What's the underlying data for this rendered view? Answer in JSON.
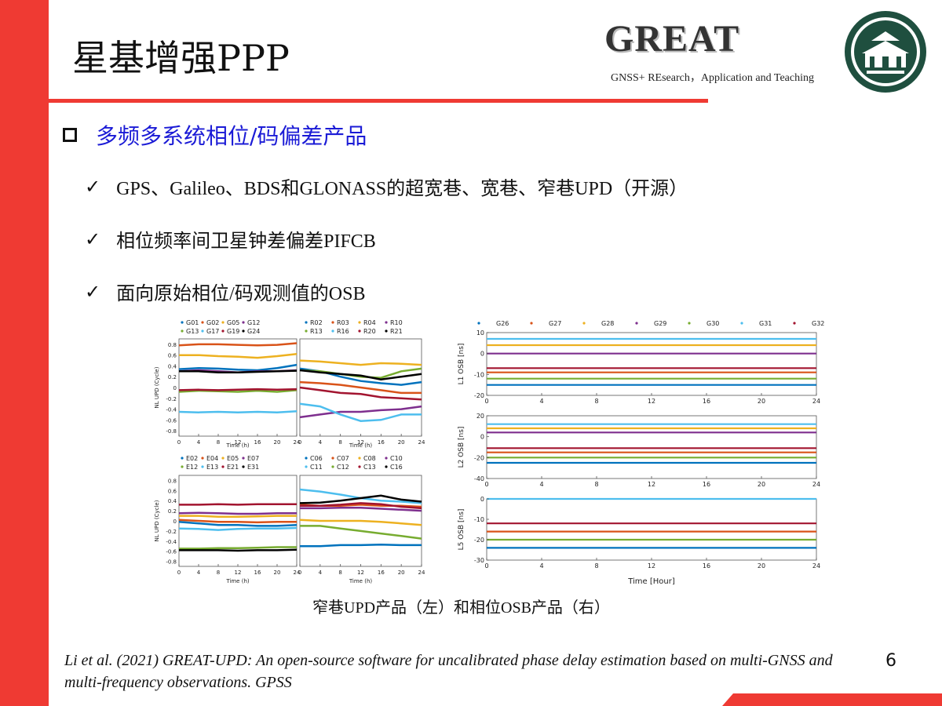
{
  "slide": {
    "title": "星基增强PPP",
    "page_number": "6",
    "brand": {
      "name": "GREAT",
      "tagline": "GNSS+ REsearch，Application and Teaching"
    },
    "seal_icon": "wuhan-university-seal",
    "colors": {
      "accent": "#ef3a33",
      "heading": "#1b1bd6"
    }
  },
  "content": {
    "main_bullet": "多频多系统相位/码偏差产品",
    "items": [
      "GPS、Galileo、BDS和GLONASS的超宽巷、宽巷、窄巷UPD（开源）",
      "相位频率间卫星钟差偏差PIFCB",
      "面向原始相位/码观测值的OSB"
    ],
    "caption": "窄巷UPD产品（左）和相位OSB产品（右）",
    "citation": "Li et al. (2021) GREAT-UPD: An open-source software for uncalibrated phase delay estimation based on multi-GNSS and multi-frequency observations. GPSS"
  },
  "chart_data": [
    {
      "type": "line",
      "ylabel": "NL UPD (Cycle)",
      "xlabel": "Time (h)",
      "y_ticks": [
        "0.8",
        "0.6",
        "0.4",
        "0.2",
        "0",
        "-0.2",
        "-0.4",
        "-0.6",
        "-0.8"
      ],
      "x_ticks": [
        "0",
        "4",
        "8",
        "12",
        "16",
        "20",
        "24"
      ],
      "legend": [
        "G01",
        "G02",
        "G05",
        "G12",
        "G13",
        "G17",
        "G19",
        "G24"
      ],
      "series": [
        {
          "name": "G01",
          "color": "#0072bd",
          "values": [
            0.34,
            0.36,
            0.35,
            0.33,
            0.32,
            0.36,
            0.42
          ]
        },
        {
          "name": "G02",
          "color": "#d95319",
          "values": [
            0.78,
            0.8,
            0.8,
            0.79,
            0.78,
            0.79,
            0.82
          ]
        },
        {
          "name": "G05",
          "color": "#edb120",
          "values": [
            0.6,
            0.6,
            0.58,
            0.57,
            0.55,
            0.58,
            0.62
          ]
        },
        {
          "name": "G12",
          "color": "#7e2f8e",
          "values": [
            0.3,
            0.32,
            0.3,
            0.28,
            0.3,
            0.3,
            0.32
          ]
        },
        {
          "name": "G13",
          "color": "#77ac30",
          "values": [
            -0.08,
            -0.06,
            -0.07,
            -0.08,
            -0.06,
            -0.08,
            -0.05
          ]
        },
        {
          "name": "G17",
          "color": "#4dbeee",
          "values": [
            -0.45,
            -0.46,
            -0.45,
            -0.46,
            -0.45,
            -0.46,
            -0.44
          ]
        },
        {
          "name": "G19",
          "color": "#a2142f",
          "values": [
            -0.05,
            -0.04,
            -0.05,
            -0.04,
            -0.03,
            -0.04,
            -0.03
          ]
        },
        {
          "name": "G24",
          "color": "#000000",
          "values": [
            0.3,
            0.3,
            0.28,
            0.28,
            0.29,
            0.3,
            0.31
          ]
        }
      ]
    },
    {
      "type": "line",
      "xlabel": "Time (h)",
      "x_ticks": [
        "0",
        "4",
        "8",
        "12",
        "16",
        "20",
        "24"
      ],
      "legend": [
        "R02",
        "R03",
        "R04",
        "R10",
        "R13",
        "R16",
        "R20",
        "R21"
      ],
      "series": [
        {
          "name": "R02",
          "color": "#0072bd",
          "values": [
            0.35,
            0.3,
            0.2,
            0.12,
            0.08,
            0.05,
            0.1
          ]
        },
        {
          "name": "R03",
          "color": "#d95319",
          "values": [
            0.1,
            0.08,
            0.05,
            0.0,
            -0.05,
            -0.1,
            -0.1
          ]
        },
        {
          "name": "R04",
          "color": "#edb120",
          "values": [
            0.5,
            0.48,
            0.45,
            0.42,
            0.45,
            0.44,
            0.42
          ]
        },
        {
          "name": "R10",
          "color": "#7e2f8e",
          "values": [
            -0.55,
            -0.5,
            -0.45,
            -0.45,
            -0.42,
            -0.4,
            -0.35
          ]
        },
        {
          "name": "R13",
          "color": "#77ac30",
          "values": [
            0.32,
            0.3,
            0.25,
            0.2,
            0.18,
            0.3,
            0.35
          ]
        },
        {
          "name": "R16",
          "color": "#4dbeee",
          "values": [
            -0.3,
            -0.35,
            -0.5,
            -0.62,
            -0.6,
            -0.5,
            -0.5
          ]
        },
        {
          "name": "R20",
          "color": "#a2142f",
          "values": [
            0.0,
            -0.05,
            -0.1,
            -0.12,
            -0.18,
            -0.2,
            -0.22
          ]
        },
        {
          "name": "R21",
          "color": "#000000",
          "values": [
            0.32,
            0.28,
            0.25,
            0.22,
            0.15,
            0.2,
            0.25
          ]
        }
      ]
    },
    {
      "type": "line",
      "ylabel": "NL UPD (Cycle)",
      "xlabel": "Time (h)",
      "y_ticks": [
        "0.8",
        "0.6",
        "0.4",
        "0.2",
        "0",
        "-0.2",
        "-0.4",
        "-0.6",
        "-0.8"
      ],
      "x_ticks": [
        "0",
        "4",
        "8",
        "12",
        "16",
        "20",
        "24"
      ],
      "legend": [
        "E02",
        "E04",
        "E05",
        "E07",
        "E12",
        "E13",
        "E21",
        "E31"
      ],
      "series": [
        {
          "name": "E02",
          "color": "#0072bd",
          "values": [
            -0.02,
            -0.05,
            -0.08,
            -0.08,
            -0.1,
            -0.1,
            -0.08
          ]
        },
        {
          "name": "E04",
          "color": "#d95319",
          "values": [
            0.02,
            0.0,
            -0.02,
            -0.02,
            -0.03,
            -0.02,
            -0.02
          ]
        },
        {
          "name": "E05",
          "color": "#edb120",
          "values": [
            0.1,
            0.1,
            0.08,
            0.08,
            0.09,
            0.1,
            0.1
          ]
        },
        {
          "name": "E07",
          "color": "#7e2f8e",
          "values": [
            0.15,
            0.16,
            0.15,
            0.14,
            0.14,
            0.15,
            0.15
          ]
        },
        {
          "name": "E12",
          "color": "#77ac30",
          "values": [
            -0.55,
            -0.55,
            -0.54,
            -0.54,
            -0.53,
            -0.52,
            -0.52
          ]
        },
        {
          "name": "E13",
          "color": "#4dbeee",
          "values": [
            -0.15,
            -0.16,
            -0.18,
            -0.16,
            -0.15,
            -0.15,
            -0.14
          ]
        },
        {
          "name": "E21",
          "color": "#a2142f",
          "values": [
            0.32,
            0.32,
            0.33,
            0.32,
            0.33,
            0.33,
            0.33
          ]
        },
        {
          "name": "E31",
          "color": "#000000",
          "values": [
            -0.58,
            -0.58,
            -0.58,
            -0.59,
            -0.58,
            -0.58,
            -0.57
          ]
        }
      ]
    },
    {
      "type": "line",
      "xlabel": "Time (h)",
      "x_ticks": [
        "0",
        "4",
        "8",
        "12",
        "16",
        "20",
        "24"
      ],
      "legend": [
        "C06",
        "C07",
        "C08",
        "C10",
        "C11",
        "C12",
        "C13",
        "C16"
      ],
      "series": [
        {
          "name": "C06",
          "color": "#0072bd",
          "values": [
            -0.5,
            -0.5,
            -0.48,
            -0.48,
            -0.47,
            -0.48,
            -0.48
          ]
        },
        {
          "name": "C07",
          "color": "#d95319",
          "values": [
            0.32,
            0.3,
            0.3,
            0.32,
            0.3,
            0.3,
            0.28
          ]
        },
        {
          "name": "C08",
          "color": "#edb120",
          "values": [
            0.02,
            0.0,
            0.0,
            0.0,
            -0.02,
            -0.05,
            -0.08
          ]
        },
        {
          "name": "C10",
          "color": "#7e2f8e",
          "values": [
            0.25,
            0.25,
            0.26,
            0.26,
            0.24,
            0.22,
            0.2
          ]
        },
        {
          "name": "C11",
          "color": "#4dbeee",
          "values": [
            0.62,
            0.58,
            0.52,
            0.45,
            0.4,
            0.38,
            0.35
          ]
        },
        {
          "name": "C12",
          "color": "#77ac30",
          "values": [
            -0.1,
            -0.1,
            -0.15,
            -0.2,
            -0.25,
            -0.3,
            -0.35
          ]
        },
        {
          "name": "C13",
          "color": "#a2142f",
          "values": [
            0.3,
            0.3,
            0.32,
            0.35,
            0.33,
            0.28,
            0.25
          ]
        },
        {
          "name": "C16",
          "color": "#000000",
          "values": [
            0.35,
            0.36,
            0.4,
            0.45,
            0.5,
            0.42,
            0.38
          ]
        }
      ]
    },
    {
      "type": "line",
      "ylabel": "L1 OSB [ns]",
      "x_ticks": [
        "0",
        "4",
        "8",
        "12",
        "16",
        "20",
        "24"
      ],
      "y_ticks": [
        "10",
        "0",
        "-10",
        "-20"
      ],
      "ylim": [
        -20,
        10
      ],
      "legend": [
        "G26",
        "G27",
        "G28",
        "G29",
        "G30",
        "G31",
        "G32"
      ],
      "series": [
        {
          "name": "G26",
          "color": "#0072bd",
          "values": [
            -15,
            -15
          ]
        },
        {
          "name": "G27",
          "color": "#d95319",
          "values": [
            -9,
            -9
          ]
        },
        {
          "name": "G28",
          "color": "#edb120",
          "values": [
            4,
            4
          ]
        },
        {
          "name": "G29",
          "color": "#7e2f8e",
          "values": [
            0,
            0
          ]
        },
        {
          "name": "G30",
          "color": "#77ac30",
          "values": [
            -12,
            -12
          ]
        },
        {
          "name": "G31",
          "color": "#4dbeee",
          "values": [
            7,
            7
          ]
        },
        {
          "name": "G32",
          "color": "#a2142f",
          "values": [
            -7,
            -7
          ]
        }
      ]
    },
    {
      "type": "line",
      "ylabel": "L2 OSB [ns]",
      "x_ticks": [
        "0",
        "4",
        "8",
        "12",
        "16",
        "20",
        "24"
      ],
      "y_ticks": [
        "20",
        "0",
        "-20",
        "-40"
      ],
      "ylim": [
        -40,
        20
      ],
      "series": [
        {
          "color": "#4dbeee",
          "values": [
            12,
            12
          ]
        },
        {
          "color": "#edb120",
          "values": [
            8,
            8
          ]
        },
        {
          "color": "#7e2f8e",
          "values": [
            4,
            4
          ]
        },
        {
          "color": "#a2142f",
          "values": [
            -11,
            -11
          ]
        },
        {
          "color": "#d95319",
          "values": [
            -15,
            -15
          ]
        },
        {
          "color": "#77ac30",
          "values": [
            -20,
            -20
          ]
        },
        {
          "color": "#0072bd",
          "values": [
            -25,
            -25
          ]
        }
      ]
    },
    {
      "type": "line",
      "ylabel": "L5 OSB [ns]",
      "xlabel": "Time [Hour]",
      "x_ticks": [
        "0",
        "4",
        "8",
        "12",
        "16",
        "20",
        "24"
      ],
      "y_ticks": [
        "0",
        "-10",
        "-20",
        "-30"
      ],
      "ylim": [
        -30,
        0
      ],
      "series": [
        {
          "color": "#4dbeee",
          "values": [
            0,
            0
          ]
        },
        {
          "color": "#a2142f",
          "values": [
            -12,
            -12
          ]
        },
        {
          "color": "#d95319",
          "values": [
            -16,
            -16
          ]
        },
        {
          "color": "#77ac30",
          "values": [
            -20,
            -20
          ]
        },
        {
          "color": "#0072bd",
          "values": [
            -24,
            -24
          ]
        }
      ]
    }
  ]
}
